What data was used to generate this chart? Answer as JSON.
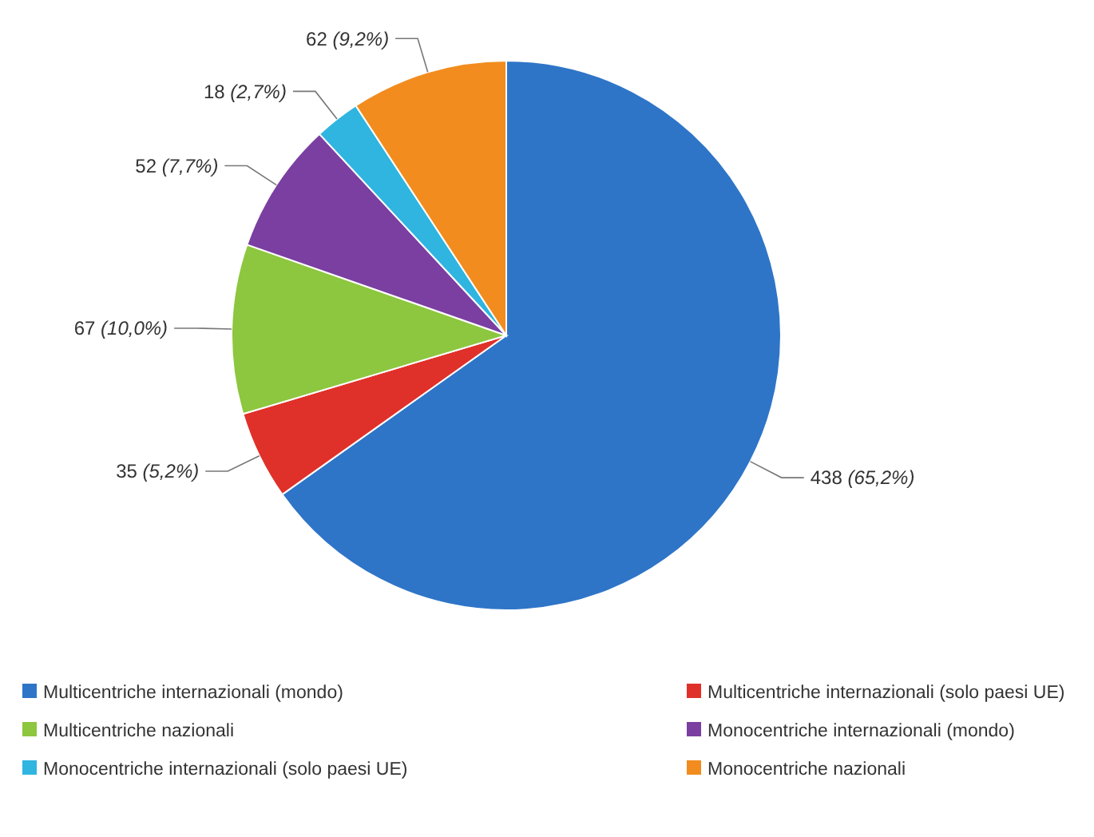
{
  "chart_data": {
    "type": "pie",
    "categories": [
      "Multicentriche internazionali (mondo)",
      "Multicentriche internazionali (solo paesi UE)",
      "Multicentriche nazionali",
      "Monocentriche internazionali (mondo)",
      "Monocentriche internazionali (solo paesi UE)",
      "Monocentriche nazionali"
    ],
    "values": [
      438,
      35,
      67,
      52,
      18,
      62
    ],
    "value_labels": [
      "438 (65,2%)",
      "35 (5,2%)",
      "67 (10,0%)",
      "52 (7,7%)",
      "18 (2,7%)",
      "62 (9,2%)"
    ],
    "colors": [
      "#2e75c8",
      "#e0302a",
      "#8dc63f",
      "#7a3fa0",
      "#2fb5e0",
      "#f28c1e"
    ],
    "legend": "bottom"
  }
}
